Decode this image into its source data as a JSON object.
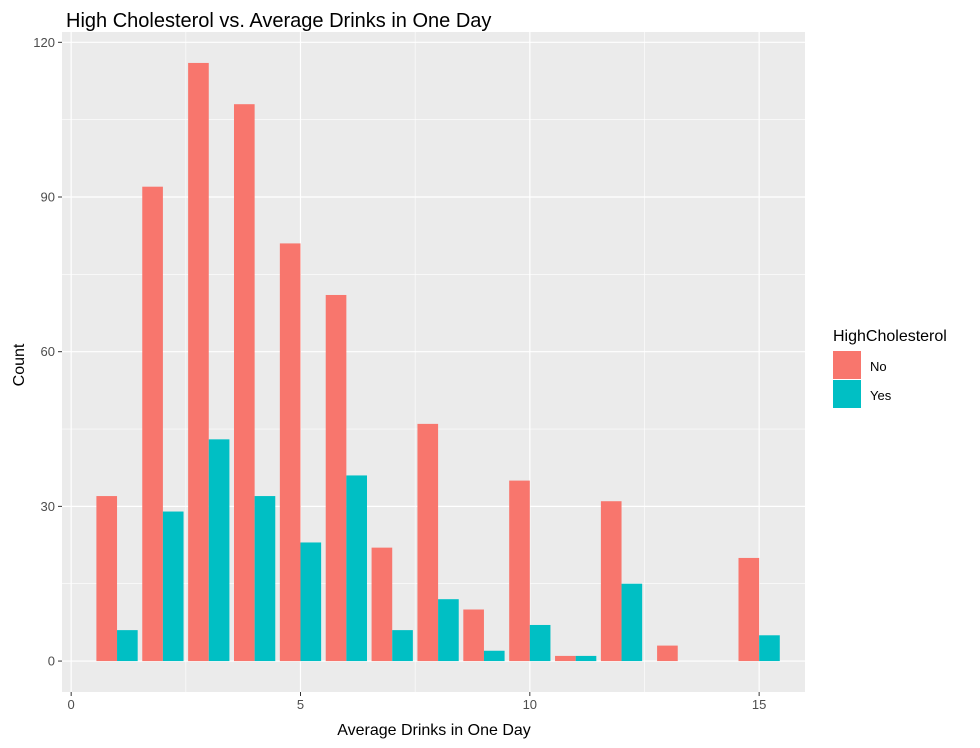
{
  "chart_data": {
    "type": "bar",
    "title": "High Cholesterol vs. Average Drinks in One Day",
    "xlabel": "Average Drinks in One Day",
    "ylabel": "Count",
    "xlim": [
      -0.2,
      16.0
    ],
    "ylim": [
      -6,
      122
    ],
    "x_ticks": [
      0,
      5,
      10,
      15
    ],
    "y_ticks": [
      0,
      30,
      60,
      90,
      120
    ],
    "grid": true,
    "legend_position": "right",
    "legend_title": "HighCholesterol",
    "bar_width": 0.9,
    "x": [
      1,
      2,
      3,
      4,
      5,
      6,
      7,
      8,
      9,
      10,
      11,
      12,
      13,
      15
    ],
    "series": [
      {
        "name": "No",
        "color": "#F8766D",
        "values": [
          32,
          92,
          116,
          108,
          81,
          71,
          22,
          46,
          10,
          35,
          1,
          31,
          3,
          20
        ]
      },
      {
        "name": "Yes",
        "color": "#00BFC4",
        "values": [
          6,
          29,
          43,
          32,
          23,
          36,
          6,
          12,
          2,
          7,
          1,
          15,
          null,
          5
        ]
      }
    ]
  }
}
